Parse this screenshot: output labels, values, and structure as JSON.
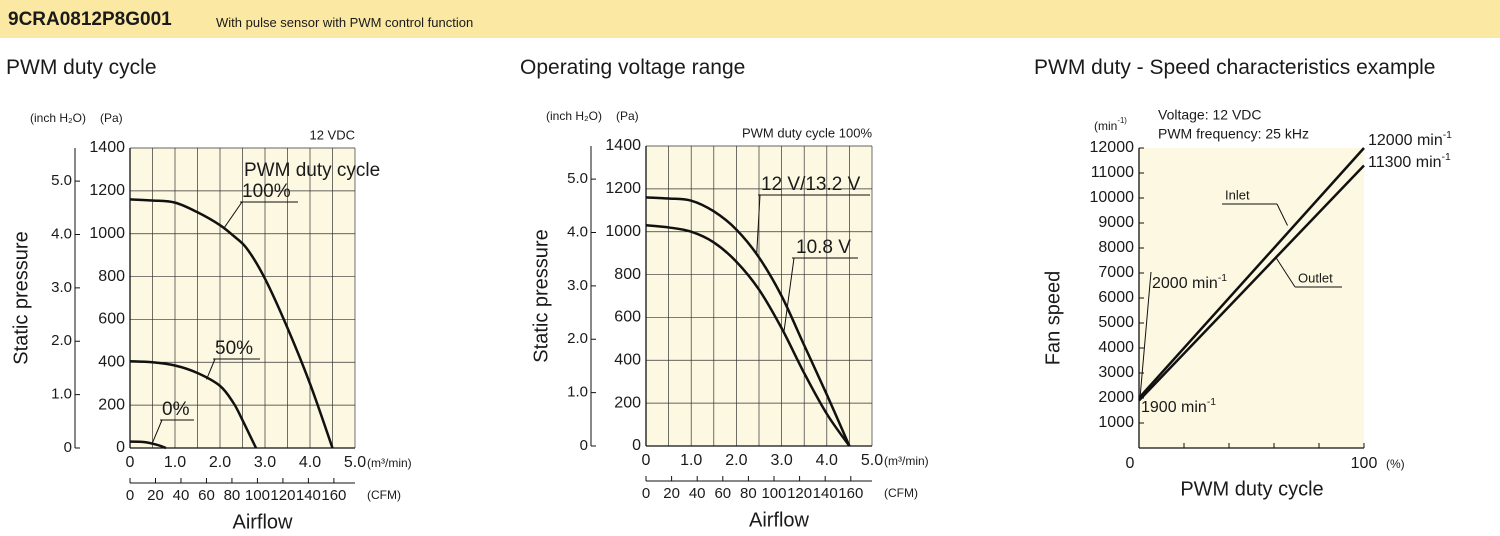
{
  "header": {
    "model": "9CRA0812P8G001",
    "description": "With pulse sensor with PWM control function",
    "background": "#fbe9a3"
  },
  "chart_data": [
    {
      "type": "line",
      "title": "PWM duty cycle",
      "condition": "12 VDC",
      "legend_title": "PWM duty cycle",
      "xlabel": "Airflow",
      "ylabel": "Static pressure",
      "x_unit_primary": "(m³/min)",
      "x_unit_secondary": "(CFM)",
      "y_unit_primary": "(Pa)",
      "y_unit_secondary": "(inch H₂O)",
      "xlim": [
        0,
        5.0
      ],
      "ylim": [
        0,
        1400
      ],
      "x_ticks": [
        "0",
        "1.0",
        "2.0",
        "3.0",
        "4.0",
        "5.0"
      ],
      "y_ticks": [
        "0",
        "200",
        "400",
        "600",
        "800",
        "1000",
        "1200",
        "1400"
      ],
      "cfm_ticks": [
        "0",
        "20",
        "40",
        "60",
        "80",
        "100",
        "120",
        "140",
        "160"
      ],
      "inch_ticks": [
        "0",
        "1.0",
        "2.0",
        "3.0",
        "4.0",
        "5.0"
      ],
      "grid": true,
      "plot_background": "#fcf8e1",
      "series": [
        {
          "name": "100%",
          "x": [
            0,
            0.5,
            1.0,
            1.5,
            2.0,
            2.3,
            2.6,
            3.0,
            3.5,
            4.0,
            4.5
          ],
          "y": [
            1160,
            1155,
            1145,
            1100,
            1040,
            990,
            930,
            790,
            560,
            300,
            0
          ]
        },
        {
          "name": "50%",
          "x": [
            0,
            0.5,
            1.0,
            1.5,
            2.0,
            2.3,
            2.5,
            2.8
          ],
          "y": [
            405,
            400,
            385,
            350,
            290,
            210,
            130,
            0
          ]
        },
        {
          "name": "0%",
          "x": [
            0,
            0.3,
            0.6,
            0.8
          ],
          "y": [
            30,
            28,
            15,
            0
          ]
        }
      ]
    },
    {
      "type": "line",
      "title": "Operating voltage range",
      "condition": "PWM duty cycle 100%",
      "xlabel": "Airflow",
      "ylabel": "Static pressure",
      "x_unit_primary": "(m³/min)",
      "x_unit_secondary": "(CFM)",
      "y_unit_primary": "(Pa)",
      "y_unit_secondary": "(inch H₂O)",
      "xlim": [
        0,
        5.0
      ],
      "ylim": [
        0,
        1400
      ],
      "x_ticks": [
        "0",
        "1.0",
        "2.0",
        "3.0",
        "4.0",
        "5.0"
      ],
      "y_ticks": [
        "0",
        "200",
        "400",
        "600",
        "800",
        "1000",
        "1200",
        "1400"
      ],
      "cfm_ticks": [
        "0",
        "20",
        "40",
        "60",
        "80",
        "100",
        "120",
        "140",
        "160"
      ],
      "inch_ticks": [
        "0",
        "1.0",
        "2.0",
        "3.0",
        "4.0",
        "5.0"
      ],
      "grid": true,
      "plot_background": "#fcf8e1",
      "series": [
        {
          "name": "12 V/13.2 V",
          "x": [
            0,
            0.5,
            1.0,
            1.5,
            2.0,
            2.5,
            3.0,
            3.5,
            4.0,
            4.5
          ],
          "y": [
            1160,
            1155,
            1145,
            1095,
            1010,
            880,
            700,
            470,
            240,
            0
          ]
        },
        {
          "name": "10.8 V",
          "x": [
            0,
            0.5,
            1.0,
            1.5,
            2.0,
            2.5,
            3.0,
            3.5,
            4.0,
            4.5
          ],
          "y": [
            1030,
            1020,
            1000,
            950,
            860,
            730,
            550,
            340,
            150,
            0
          ]
        }
      ]
    },
    {
      "type": "line",
      "title": "PWM duty - Speed characteristics example",
      "condition_lines": [
        "Voltage: 12 VDC",
        "PWM frequency: 25 kHz"
      ],
      "xlabel": "PWM duty cycle",
      "ylabel": "Fan speed",
      "x_unit": "(%)",
      "y_unit": "(min⁻¹)",
      "xlim": [
        0,
        100
      ],
      "ylim": [
        0,
        12000
      ],
      "x_ticks": [
        "0",
        "100"
      ],
      "y_ticks": [
        "1000",
        "2000",
        "3000",
        "4000",
        "5000",
        "6000",
        "7000",
        "8000",
        "9000",
        "10000",
        "11000",
        "12000"
      ],
      "grid": false,
      "plot_background": "#fcf8e1",
      "series": [
        {
          "name": "Inlet",
          "x": [
            0,
            100
          ],
          "y": [
            2000,
            12000
          ]
        },
        {
          "name": "Outlet",
          "x": [
            0,
            100
          ],
          "y": [
            1900,
            11300
          ]
        }
      ],
      "annotations": {
        "inlet_start": "2000",
        "outlet_start": "1900",
        "inlet_end": "12000",
        "outlet_end": "11300",
        "unit_base": "min",
        "unit_sup": "-1"
      }
    }
  ]
}
